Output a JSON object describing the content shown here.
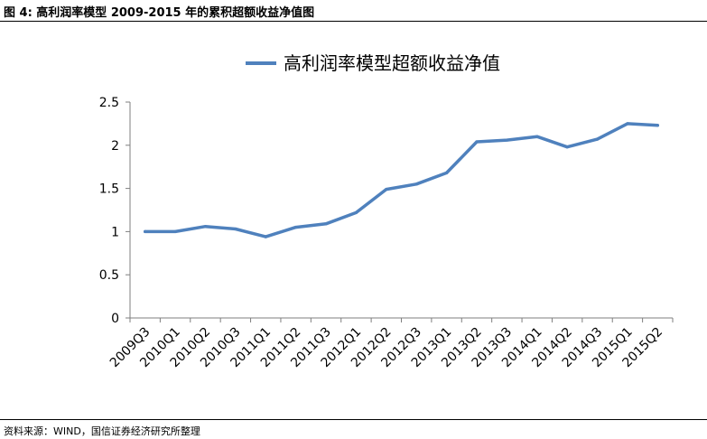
{
  "figure": {
    "title": "图 4: 高利润率模型 2009-2015 年的累积超额收益净值图",
    "source": "资料来源：WIND，国信证券经济研究所整理"
  },
  "chart_data": {
    "type": "line",
    "categories": [
      "2009Q3",
      "2010Q1",
      "2010Q2",
      "2010Q3",
      "2011Q1",
      "2011Q2",
      "2011Q3",
      "2012Q1",
      "2012Q2",
      "2012Q3",
      "2013Q1",
      "2013Q2",
      "2013Q3",
      "2014Q1",
      "2014Q2",
      "2014Q3",
      "2015Q1",
      "2015Q2"
    ],
    "series": [
      {
        "name": "高利润率模型超额收益净值",
        "color": "#4f81bd",
        "values": [
          1.0,
          1.0,
          1.06,
          1.03,
          0.94,
          1.05,
          1.09,
          1.22,
          1.49,
          1.55,
          1.68,
          2.04,
          2.06,
          2.1,
          1.98,
          2.07,
          2.25,
          2.23
        ]
      }
    ],
    "ylim": [
      0,
      2.5
    ],
    "yticks": [
      "0",
      "0.5",
      "1",
      "1.5",
      "2",
      "2.5"
    ],
    "legend_position": "top-center",
    "grid": false
  }
}
